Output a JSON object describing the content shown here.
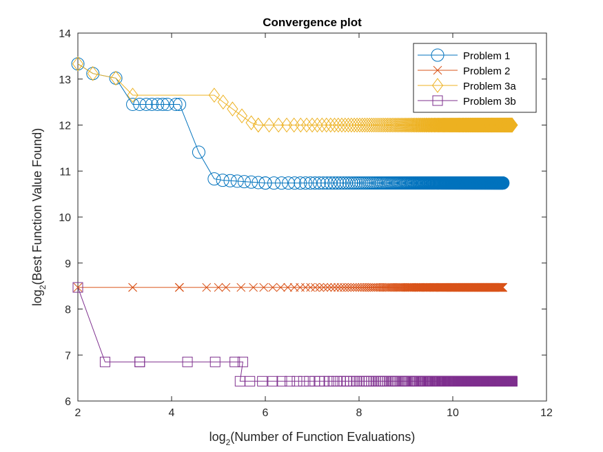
{
  "chart_data": {
    "type": "line",
    "title": "Convergence plot",
    "xlabel_main": "log",
    "xlabel_sub": "2",
    "xlabel_rest": "(Number of Function Evaluations)",
    "ylabel_main": "log",
    "ylabel_sub": "2",
    "ylabel_rest": "(Best Function Value Found)",
    "xlim": [
      2,
      12
    ],
    "ylim": [
      6,
      14
    ],
    "xticks": [
      2,
      4,
      6,
      8,
      10,
      12
    ],
    "yticks": [
      6,
      7,
      8,
      9,
      10,
      11,
      12,
      13,
      14
    ],
    "grid": false,
    "legend_location": "top-right",
    "series": [
      {
        "name": "Problem 1",
        "color": "#0072BD",
        "marker": "circle",
        "points": [
          [
            2.0,
            13.33
          ],
          [
            2.32,
            13.12
          ],
          [
            2.81,
            13.02
          ],
          [
            3.17,
            12.45
          ],
          [
            3.32,
            12.45
          ],
          [
            3.46,
            12.45
          ],
          [
            3.58,
            12.45
          ],
          [
            3.7,
            12.45
          ],
          [
            3.81,
            12.45
          ],
          [
            3.91,
            12.45
          ],
          [
            4.09,
            12.45
          ],
          [
            4.17,
            12.45
          ],
          [
            4.58,
            11.41
          ],
          [
            4.91,
            10.83
          ],
          [
            5.09,
            10.8
          ],
          [
            5.25,
            10.79
          ],
          [
            5.4,
            10.78
          ],
          [
            5.55,
            10.77
          ],
          [
            5.7,
            10.76
          ],
          [
            5.85,
            10.75
          ],
          [
            6.0,
            10.74
          ],
          [
            11.07,
            10.74
          ]
        ],
        "dense_from": 6.0,
        "dense_to": 11.07,
        "dense_value": 10.74
      },
      {
        "name": "Problem 2",
        "color": "#D95319",
        "marker": "x",
        "points": [
          [
            2.0,
            8.47
          ],
          [
            3.17,
            8.47
          ],
          [
            4.17,
            8.47
          ],
          [
            5.0,
            8.47
          ],
          [
            11.07,
            8.47
          ]
        ],
        "dense_from": 3.17,
        "dense_to": 11.07,
        "dense_value": 8.47
      },
      {
        "name": "Problem 3a",
        "color": "#EDB120",
        "marker": "diamond",
        "points": [
          [
            2.0,
            13.33
          ],
          [
            2.32,
            13.12
          ],
          [
            2.81,
            13.02
          ],
          [
            3.17,
            12.65
          ],
          [
            4.91,
            12.65
          ],
          [
            5.1,
            12.5
          ],
          [
            5.3,
            12.35
          ],
          [
            5.5,
            12.2
          ],
          [
            5.7,
            12.05
          ],
          [
            5.85,
            12.0
          ],
          [
            11.27,
            12.0
          ]
        ],
        "dense_from": 5.85,
        "dense_to": 11.27,
        "dense_value": 12.0
      },
      {
        "name": "Problem 3b",
        "color": "#7E2F8E",
        "marker": "square",
        "points": [
          [
            2.0,
            8.47
          ],
          [
            2.58,
            6.85
          ],
          [
            3.32,
            6.85
          ],
          [
            5.52,
            6.85
          ],
          [
            5.46,
            6.43
          ],
          [
            11.27,
            6.43
          ]
        ],
        "dense_from": 3.32,
        "dense_to": 11.27,
        "dense_value": null
      }
    ]
  }
}
